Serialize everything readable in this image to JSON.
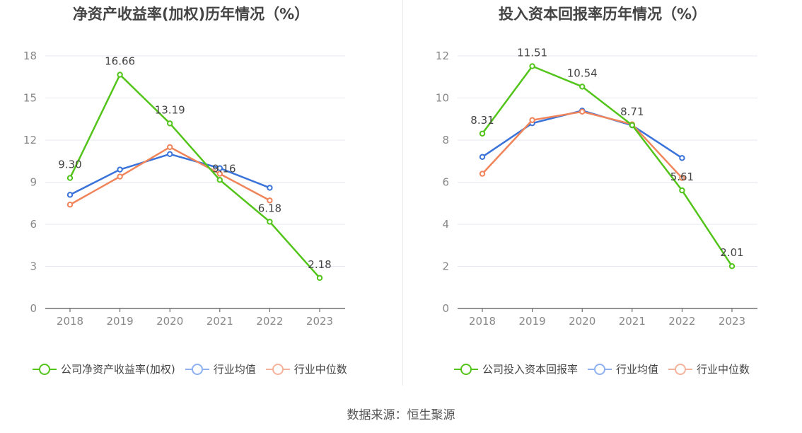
{
  "source_text": "数据来源：恒生聚源",
  "chart_data": [
    {
      "type": "line",
      "title": "净资产收益率(加权)历年情况（%）",
      "xlabel": "",
      "ylabel": "",
      "categories": [
        "2018",
        "2019",
        "2020",
        "2021",
        "2022",
        "2023"
      ],
      "ylim": [
        0,
        18
      ],
      "yticks": [
        0,
        3,
        6,
        9,
        12,
        15,
        18
      ],
      "grid": true,
      "legend_position": "bottom",
      "series": [
        {
          "name": "公司净资产收益率(加权)",
          "color": "#52c41a",
          "values": [
            9.3,
            16.66,
            13.19,
            9.16,
            6.18,
            2.18
          ],
          "labels": [
            "9.30",
            "16.66",
            "13.19",
            "9.16",
            "6.18",
            "2.18"
          ]
        },
        {
          "name": "行业均值",
          "color": "#3a73d9",
          "values": [
            8.1,
            9.9,
            11.0,
            10.0,
            8.6,
            null
          ]
        },
        {
          "name": "行业中位数",
          "color": "#f0845a",
          "values": [
            7.4,
            9.4,
            11.5,
            9.6,
            7.7,
            null
          ]
        }
      ]
    },
    {
      "type": "line",
      "title": "投入资本回报率历年情况（%）",
      "xlabel": "",
      "ylabel": "",
      "categories": [
        "2018",
        "2019",
        "2020",
        "2021",
        "2022",
        "2023"
      ],
      "ylim": [
        0,
        12
      ],
      "yticks": [
        0,
        2,
        4,
        6,
        8,
        10,
        12
      ],
      "grid": true,
      "legend_position": "bottom",
      "series": [
        {
          "name": "公司投入资本回报率",
          "color": "#52c41a",
          "values": [
            8.31,
            11.51,
            10.54,
            8.71,
            5.61,
            2.01
          ],
          "labels": [
            "8.31",
            "11.51",
            "10.54",
            "8.71",
            "5.61",
            "2.01"
          ]
        },
        {
          "name": "行业均值",
          "color": "#3a73d9",
          "values": [
            7.2,
            8.8,
            9.4,
            8.7,
            7.15,
            null
          ]
        },
        {
          "name": "行业中位数",
          "color": "#f0845a",
          "values": [
            6.4,
            8.95,
            9.35,
            8.75,
            6.2,
            null
          ]
        }
      ]
    }
  ],
  "legend_colors": {
    "company": "#52c41a",
    "industry_mean": "#8cb0f0",
    "industry_median": "#f5b29a"
  }
}
